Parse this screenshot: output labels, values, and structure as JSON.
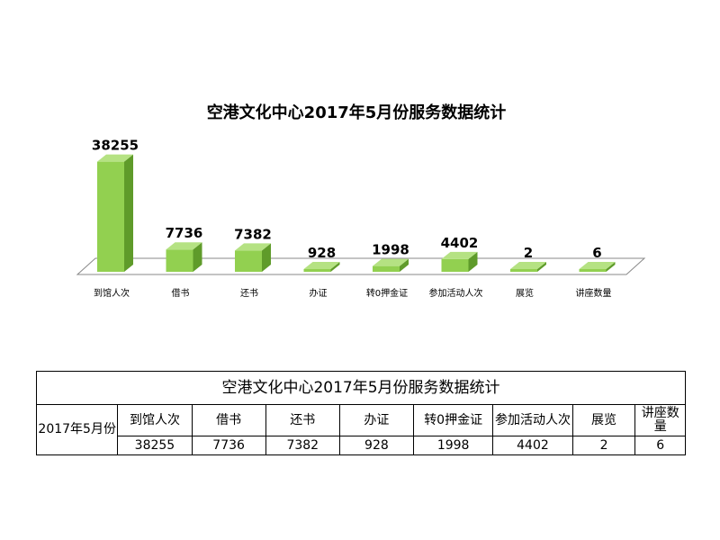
{
  "chart_data": {
    "type": "bar",
    "title": "空港文化中心2017年5月份服务数据统计",
    "categories": [
      "到馆人次",
      "借书",
      "还书",
      "办证",
      "转0押金证",
      "参加活动人次",
      "展览",
      "讲座数量"
    ],
    "values": [
      38255,
      7736,
      7382,
      928,
      1998,
      4402,
      2,
      6
    ],
    "xlabel": "",
    "ylabel": "",
    "ylim": [
      0,
      40000
    ],
    "grid": false,
    "legend": "none",
    "colors": {
      "bar_front": "#92d050",
      "bar_side": "#5f9b2a",
      "bar_top": "#b5e283",
      "floor_stroke": "#888888"
    }
  },
  "table": {
    "title": "空港文化中心2017年5月份服务数据统计",
    "row_label": "2017年5月份",
    "headers": [
      "到馆人次",
      "借书",
      "还书",
      "办证",
      "转0押金证",
      "参加活动人次",
      "展览",
      "讲座数量"
    ],
    "values": [
      "38255",
      "7736",
      "7382",
      "928",
      "1998",
      "4402",
      "2",
      "6"
    ]
  }
}
